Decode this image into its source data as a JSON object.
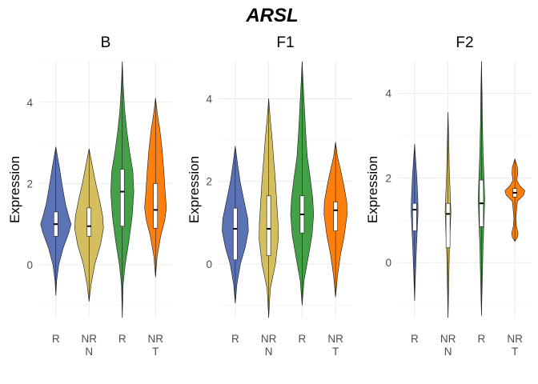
{
  "chart_data": {
    "type": "violin",
    "title": "ARSL",
    "ylabel": "Expression",
    "colors": {
      "R_N": "#5B72B5",
      "NR_N": "#D4BE5F",
      "R_T": "#43A047",
      "NR_T": "#FF7F0E"
    },
    "panels": [
      {
        "name": "B",
        "ylim": [
          -1.3,
          5.0
        ],
        "yticks": [
          0,
          2,
          4
        ],
        "groups": [
          {
            "label": "R",
            "sub": "",
            "color_key": "R_N",
            "min": -0.75,
            "max": 2.9,
            "q1": 0.7,
            "median": 1.0,
            "q3": 1.3,
            "profile": [
              [
                -0.75,
                0.0
              ],
              [
                -0.4,
                0.05
              ],
              [
                0.0,
                0.18
              ],
              [
                0.4,
                0.45
              ],
              [
                0.8,
                0.82
              ],
              [
                1.0,
                0.95
              ],
              [
                1.2,
                0.8
              ],
              [
                1.5,
                0.6
              ],
              [
                1.9,
                0.42
              ],
              [
                2.4,
                0.22
              ],
              [
                2.9,
                0.0
              ]
            ]
          },
          {
            "label": "NR",
            "sub": "N",
            "color_key": "NR_N",
            "min": -0.9,
            "max": 2.85,
            "q1": 0.7,
            "median": 0.95,
            "q3": 1.4,
            "profile": [
              [
                -0.9,
                0.0
              ],
              [
                -0.5,
                0.12
              ],
              [
                0.0,
                0.35
              ],
              [
                0.5,
                0.72
              ],
              [
                0.9,
                0.9
              ],
              [
                1.2,
                0.85
              ],
              [
                1.6,
                0.65
              ],
              [
                2.0,
                0.42
              ],
              [
                2.4,
                0.22
              ],
              [
                2.85,
                0.0
              ]
            ]
          },
          {
            "label": "R",
            "sub": "",
            "color_key": "R_T",
            "min": -1.3,
            "max": 5.0,
            "q1": 0.95,
            "median": 1.8,
            "q3": 2.35,
            "profile": [
              [
                -1.3,
                0.0
              ],
              [
                -0.5,
                0.05
              ],
              [
                0.0,
                0.18
              ],
              [
                0.6,
                0.42
              ],
              [
                1.2,
                0.62
              ],
              [
                1.8,
                0.72
              ],
              [
                2.3,
                0.66
              ],
              [
                2.8,
                0.45
              ],
              [
                3.3,
                0.28
              ],
              [
                3.8,
                0.15
              ],
              [
                4.4,
                0.06
              ],
              [
                5.0,
                0.0
              ]
            ]
          },
          {
            "label": "NR",
            "sub": "T",
            "color_key": "NR_T",
            "min": -0.3,
            "max": 4.1,
            "q1": 0.9,
            "median": 1.35,
            "q3": 2.0,
            "profile": [
              [
                -0.3,
                0.0
              ],
              [
                0.2,
                0.1
              ],
              [
                0.7,
                0.32
              ],
              [
                1.1,
                0.58
              ],
              [
                1.4,
                0.68
              ],
              [
                1.8,
                0.6
              ],
              [
                2.3,
                0.52
              ],
              [
                2.8,
                0.42
              ],
              [
                3.3,
                0.28
              ],
              [
                3.7,
                0.12
              ],
              [
                4.1,
                0.0
              ]
            ]
          }
        ]
      },
      {
        "name": "F1",
        "ylim": [
          -1.3,
          4.9
        ],
        "yticks": [
          0,
          2,
          4
        ],
        "groups": [
          {
            "label": "R",
            "sub": "",
            "color_key": "R_N",
            "min": -0.95,
            "max": 2.85,
            "q1": 0.1,
            "median": 0.85,
            "q3": 1.35,
            "profile": [
              [
                -0.95,
                0.0
              ],
              [
                -0.5,
                0.1
              ],
              [
                0.0,
                0.32
              ],
              [
                0.4,
                0.62
              ],
              [
                0.8,
                0.82
              ],
              [
                1.1,
                0.78
              ],
              [
                1.5,
                0.56
              ],
              [
                2.0,
                0.3
              ],
              [
                2.4,
                0.15
              ],
              [
                2.85,
                0.0
              ]
            ]
          },
          {
            "label": "NR",
            "sub": "N",
            "color_key": "NR_N",
            "min": -1.3,
            "max": 4.0,
            "q1": 0.2,
            "median": 0.85,
            "q3": 1.65,
            "profile": [
              [
                -1.3,
                0.0
              ],
              [
                -0.6,
                0.1
              ],
              [
                0.0,
                0.42
              ],
              [
                0.6,
                0.6
              ],
              [
                1.0,
                0.58
              ],
              [
                1.5,
                0.5
              ],
              [
                2.0,
                0.42
              ],
              [
                2.5,
                0.32
              ],
              [
                3.0,
                0.22
              ],
              [
                3.5,
                0.1
              ],
              [
                4.0,
                0.0
              ]
            ]
          },
          {
            "label": "R",
            "sub": "",
            "color_key": "R_T",
            "min": -1.0,
            "max": 4.9,
            "q1": 0.75,
            "median": 1.2,
            "q3": 1.65,
            "profile": [
              [
                -1.0,
                0.0
              ],
              [
                -0.4,
                0.12
              ],
              [
                0.2,
                0.4
              ],
              [
                0.7,
                0.62
              ],
              [
                1.2,
                0.72
              ],
              [
                1.6,
                0.66
              ],
              [
                2.1,
                0.5
              ],
              [
                2.6,
                0.32
              ],
              [
                3.2,
                0.22
              ],
              [
                3.8,
                0.14
              ],
              [
                4.4,
                0.06
              ],
              [
                4.9,
                0.0
              ]
            ]
          },
          {
            "label": "NR",
            "sub": "T",
            "color_key": "NR_T",
            "min": -0.8,
            "max": 2.95,
            "q1": 0.8,
            "median": 1.3,
            "q3": 1.5,
            "profile": [
              [
                -0.8,
                0.0
              ],
              [
                -0.3,
                0.12
              ],
              [
                0.2,
                0.3
              ],
              [
                0.7,
                0.55
              ],
              [
                1.2,
                0.72
              ],
              [
                1.5,
                0.7
              ],
              [
                1.9,
                0.52
              ],
              [
                2.3,
                0.3
              ],
              [
                2.6,
                0.12
              ],
              [
                2.95,
                0.0
              ]
            ]
          }
        ]
      },
      {
        "name": "F2",
        "ylim": [
          -1.3,
          4.75
        ],
        "yticks": [
          0,
          2,
          4
        ],
        "groups": [
          {
            "label": "R",
            "sub": "",
            "color_key": "R_N",
            "min": -0.9,
            "max": 2.8,
            "q1": 0.75,
            "median": 1.25,
            "q3": 1.4,
            "profile": [
              [
                -0.9,
                0.0
              ],
              [
                -0.2,
                0.06
              ],
              [
                0.4,
                0.12
              ],
              [
                0.9,
                0.18
              ],
              [
                1.2,
                0.22
              ],
              [
                1.5,
                0.2
              ],
              [
                2.0,
                0.14
              ],
              [
                2.4,
                0.07
              ],
              [
                2.8,
                0.0
              ]
            ]
          },
          {
            "label": "NR",
            "sub": "N",
            "color_key": "NR_N",
            "min": -1.3,
            "max": 3.55,
            "q1": 0.35,
            "median": 1.15,
            "q3": 1.4,
            "profile": [
              [
                -1.3,
                0.0
              ],
              [
                -0.4,
                0.05
              ],
              [
                0.2,
                0.08
              ],
              [
                0.8,
                0.14
              ],
              [
                1.2,
                0.18
              ],
              [
                1.6,
                0.14
              ],
              [
                2.2,
                0.08
              ],
              [
                2.8,
                0.05
              ],
              [
                3.55,
                0.0
              ]
            ]
          },
          {
            "label": "R",
            "sub": "",
            "color_key": "R_T",
            "min": -1.25,
            "max": 4.75,
            "q1": 0.85,
            "median": 1.4,
            "q3": 1.95,
            "profile": [
              [
                -1.25,
                0.0
              ],
              [
                -0.3,
                0.06
              ],
              [
                0.4,
                0.1
              ],
              [
                1.0,
                0.16
              ],
              [
                1.5,
                0.2
              ],
              [
                2.0,
                0.16
              ],
              [
                2.6,
                0.1
              ],
              [
                3.3,
                0.06
              ],
              [
                4.0,
                0.04
              ],
              [
                4.75,
                0.0
              ]
            ]
          },
          {
            "label": "NR",
            "sub": "T",
            "color_key": "NR_T",
            "min": 0.5,
            "max": 2.45,
            "q1": 1.55,
            "median": 1.65,
            "q3": 1.75,
            "profile": [
              [
                0.5,
                0.0
              ],
              [
                0.6,
                0.16
              ],
              [
                0.7,
                0.2
              ],
              [
                0.85,
                0.1
              ],
              [
                1.05,
                0.06
              ],
              [
                1.3,
                0.12
              ],
              [
                1.45,
                0.16
              ],
              [
                1.6,
                0.55
              ],
              [
                1.7,
                0.62
              ],
              [
                1.82,
                0.3
              ],
              [
                1.95,
                0.12
              ],
              [
                2.1,
                0.18
              ],
              [
                2.25,
                0.16
              ],
              [
                2.45,
                0.0
              ]
            ]
          }
        ]
      }
    ]
  }
}
